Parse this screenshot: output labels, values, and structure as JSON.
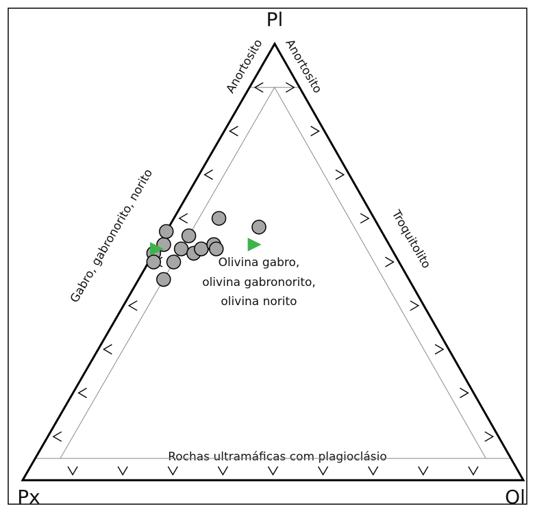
{
  "chart_data": {
    "type": "ternary",
    "vertices": {
      "top": "Pl",
      "left": "Px",
      "right": "Ol"
    },
    "ticks": [
      10,
      20,
      30,
      40,
      50,
      60,
      70,
      80,
      90
    ],
    "boundaries": {
      "pl": [
        5,
        90
      ],
      "ol": 5,
      "px": 5
    },
    "field_labels": {
      "anorthosite_left": "Anortosito",
      "anorthosite_right": "Anortosito",
      "gabbro": "Gabro, gabronorito, norito",
      "troctolite": "Troquitolito",
      "olivine_gabbro": [
        "Olivina gabro,",
        "olivina gabronorito,",
        "olivina norito"
      ],
      "ultramafic": "Rochas ultramáficas com plagioclásio"
    },
    "series": [
      {
        "marker": "circle",
        "color": "#a6a6a6",
        "pl": [
          60,
          58,
          54,
          52,
          50,
          46,
          50,
          53,
          56,
          57,
          52,
          53,
          54,
          53
        ],
        "px": [
          31,
          24,
          45,
          48,
          49,
          49,
          45,
          42,
          39,
          43,
          40,
          38,
          35,
          35
        ],
        "ol": [
          9,
          18,
          1,
          0,
          1,
          5,
          5,
          5,
          5,
          0,
          8,
          9,
          11,
          12
        ]
      },
      {
        "marker": "triangle",
        "color": "#3cb44b",
        "pl": [
          53,
          54
        ],
        "px": [
          47,
          27
        ],
        "ol": [
          0,
          19
        ]
      }
    ]
  }
}
